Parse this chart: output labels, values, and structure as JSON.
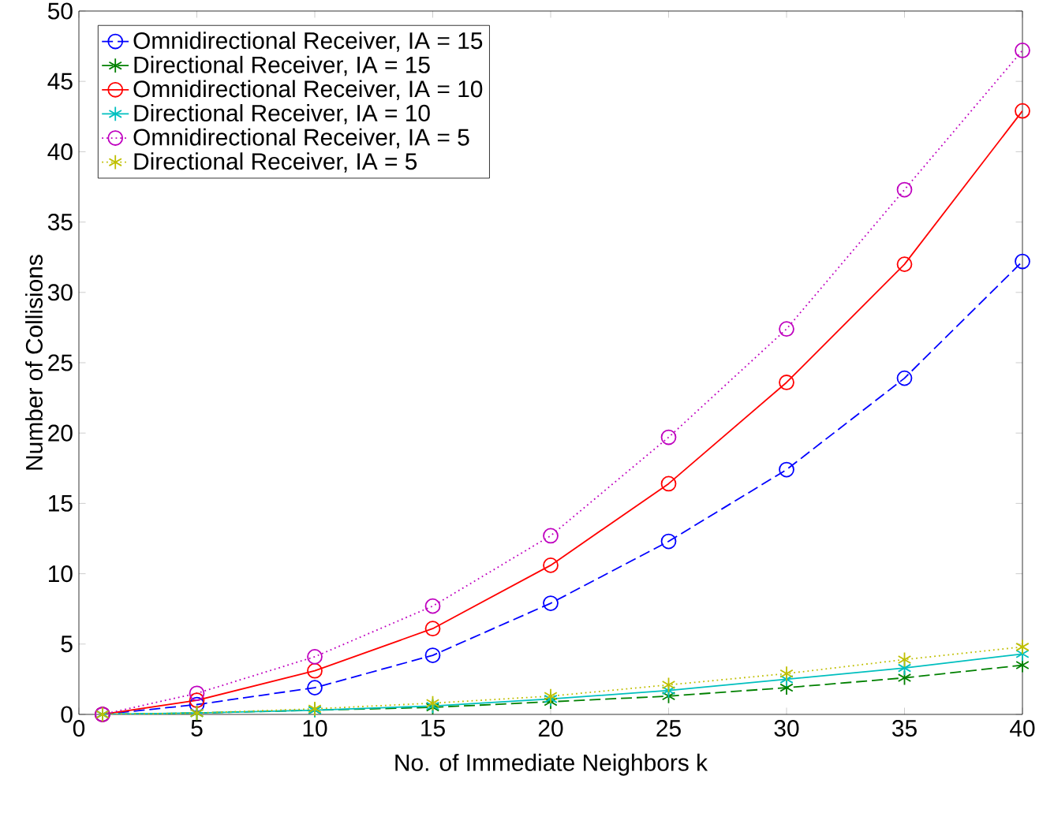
{
  "chart_data": {
    "type": "line",
    "xlabel": "No. of Immediate Neighbors k",
    "ylabel": "Number of Collisions",
    "x": [
      1,
      5,
      10,
      15,
      20,
      25,
      30,
      35,
      40
    ],
    "xlim": [
      0,
      40
    ],
    "xticks": [
      0,
      5,
      10,
      15,
      20,
      25,
      30,
      35,
      40
    ],
    "ylim": [
      0,
      50
    ],
    "yticks": [
      0,
      5,
      10,
      15,
      20,
      25,
      30,
      35,
      40,
      45,
      50
    ],
    "grid": false,
    "legend": "top left",
    "series": [
      {
        "name": "Omnidirectional Receiver, IA = 15",
        "color": "#0000ff",
        "marker": "circle",
        "line_style": "dashed",
        "values": [
          0,
          0.7,
          1.9,
          4.2,
          7.9,
          12.3,
          17.4,
          23.9,
          32.2
        ]
      },
      {
        "name": "Directional Receiver, IA = 15",
        "color": "#008000",
        "marker": "cross",
        "line_style": "dashed",
        "values": [
          0,
          0.1,
          0.3,
          0.5,
          0.9,
          1.3,
          1.9,
          2.6,
          3.5
        ]
      },
      {
        "name": "Omnidirectional Receiver, IA = 10",
        "color": "#ff0000",
        "marker": "circle",
        "line_style": "solid",
        "values": [
          0,
          1.0,
          3.1,
          6.1,
          10.6,
          16.4,
          23.6,
          32.0,
          42.9
        ]
      },
      {
        "name": "Directional Receiver, IA = 10",
        "color": "#00bfbf",
        "marker": "cross",
        "line_style": "solid",
        "values": [
          0,
          0.1,
          0.3,
          0.6,
          1.1,
          1.7,
          2.5,
          3.3,
          4.3
        ]
      },
      {
        "name": "Omnidirectional Receiver, IA = 5",
        "color": "#bf00bf",
        "marker": "circle",
        "line_style": "dotted",
        "values": [
          0,
          1.5,
          4.1,
          7.7,
          12.7,
          19.7,
          27.4,
          37.3,
          47.2
        ]
      },
      {
        "name": "Directional Receiver, IA = 5",
        "color": "#bfbf00",
        "marker": "cross",
        "line_style": "dotted",
        "values": [
          0,
          0.1,
          0.4,
          0.8,
          1.3,
          2.1,
          2.9,
          3.9,
          4.8
        ]
      }
    ]
  }
}
